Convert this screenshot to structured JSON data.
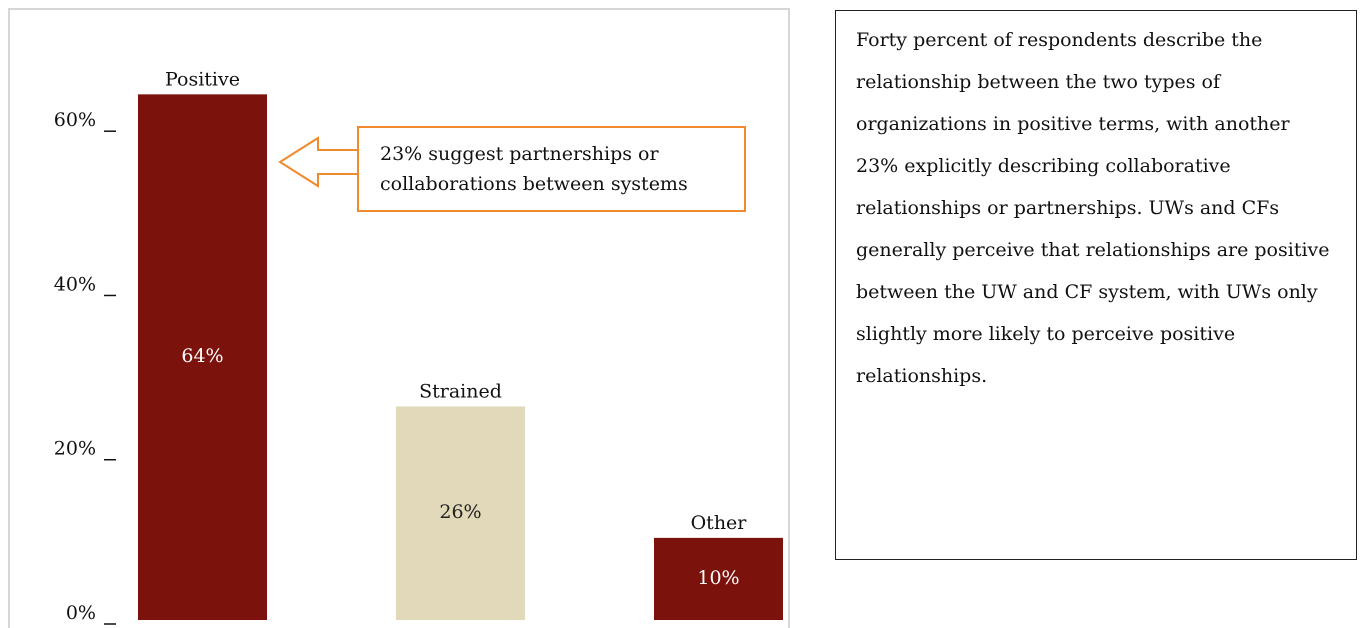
{
  "chart_data": {
    "type": "bar",
    "categories": [
      "Positive",
      "Strained",
      "Other"
    ],
    "values": [
      64,
      26,
      10
    ],
    "value_labels": [
      "64%",
      "26%",
      "10%"
    ],
    "colors": [
      "#7b120c",
      "#e1d9b9",
      "#7b120c"
    ],
    "ylim": [
      0,
      75
    ],
    "yticks": [
      {
        "value": 0,
        "label": "0%"
      },
      {
        "value": 20,
        "label": "20%"
      },
      {
        "value": 40,
        "label": "40%"
      },
      {
        "value": 60,
        "label": "60%"
      }
    ],
    "annotation": [
      "23% suggest partnerships or",
      "collaborations between systems"
    ]
  },
  "side_text": "Forty percent of respondents describe the relationship between the two types of organizations in positive terms, with another 23% explicitly describing collaborative relationships or partnerships. UWs and CFs generally perceive that relationships are positive between the UW and CF system, with UWs only slightly more likely to perceive positive relationships."
}
